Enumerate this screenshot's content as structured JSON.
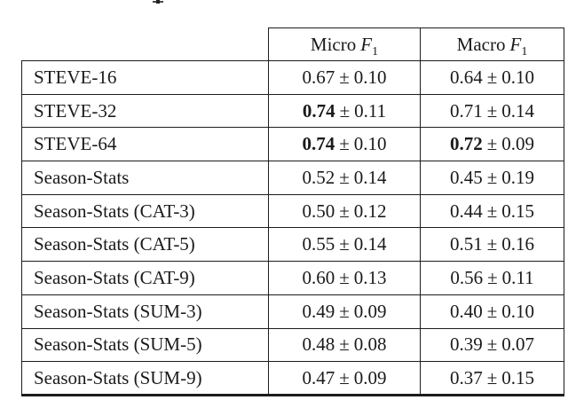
{
  "pm_symbol": "±",
  "colors": {
    "text": "#1a1a1a",
    "border": "#1c1c1c",
    "background": "#ffffff"
  },
  "table": {
    "headers": [
      {
        "text": "Micro",
        "symbol": "F",
        "subscript": "1"
      },
      {
        "text": "Macro",
        "symbol": "F",
        "subscript": "1"
      }
    ],
    "rows": [
      {
        "label": "STEVE-16",
        "micro": {
          "mean": "0.67",
          "sd": "0.10",
          "bold": false
        },
        "macro": {
          "mean": "0.64",
          "sd": "0.10",
          "bold": false
        }
      },
      {
        "label": "STEVE-32",
        "micro": {
          "mean": "0.74",
          "sd": "0.11",
          "bold": true
        },
        "macro": {
          "mean": "0.71",
          "sd": "0.14",
          "bold": false
        }
      },
      {
        "label": "STEVE-64",
        "micro": {
          "mean": "0.74",
          "sd": "0.10",
          "bold": true
        },
        "macro": {
          "mean": "0.72",
          "sd": "0.09",
          "bold": true
        }
      },
      {
        "label": "Season-Stats",
        "micro": {
          "mean": "0.52",
          "sd": "0.14",
          "bold": false
        },
        "macro": {
          "mean": "0.45",
          "sd": "0.19",
          "bold": false
        }
      },
      {
        "label": "Season-Stats (CAT-3)",
        "micro": {
          "mean": "0.50",
          "sd": "0.12",
          "bold": false
        },
        "macro": {
          "mean": "0.44",
          "sd": "0.15",
          "bold": false
        }
      },
      {
        "label": "Season-Stats (CAT-5)",
        "micro": {
          "mean": "0.55",
          "sd": "0.14",
          "bold": false
        },
        "macro": {
          "mean": "0.51",
          "sd": "0.16",
          "bold": false
        }
      },
      {
        "label": "Season-Stats (CAT-9)",
        "micro": {
          "mean": "0.60",
          "sd": "0.13",
          "bold": false
        },
        "macro": {
          "mean": "0.56",
          "sd": "0.11",
          "bold": false
        }
      },
      {
        "label": "Season-Stats (SUM-3)",
        "micro": {
          "mean": "0.49",
          "sd": "0.09",
          "bold": false
        },
        "macro": {
          "mean": "0.40",
          "sd": "0.10",
          "bold": false
        }
      },
      {
        "label": "Season-Stats (SUM-5)",
        "micro": {
          "mean": "0.48",
          "sd": "0.08",
          "bold": false
        },
        "macro": {
          "mean": "0.39",
          "sd": "0.07",
          "bold": false
        }
      },
      {
        "label": "Season-Stats (SUM-9)",
        "micro": {
          "mean": "0.47",
          "sd": "0.09",
          "bold": false
        },
        "macro": {
          "mean": "0.37",
          "sd": "0.15",
          "bold": false
        }
      }
    ]
  }
}
